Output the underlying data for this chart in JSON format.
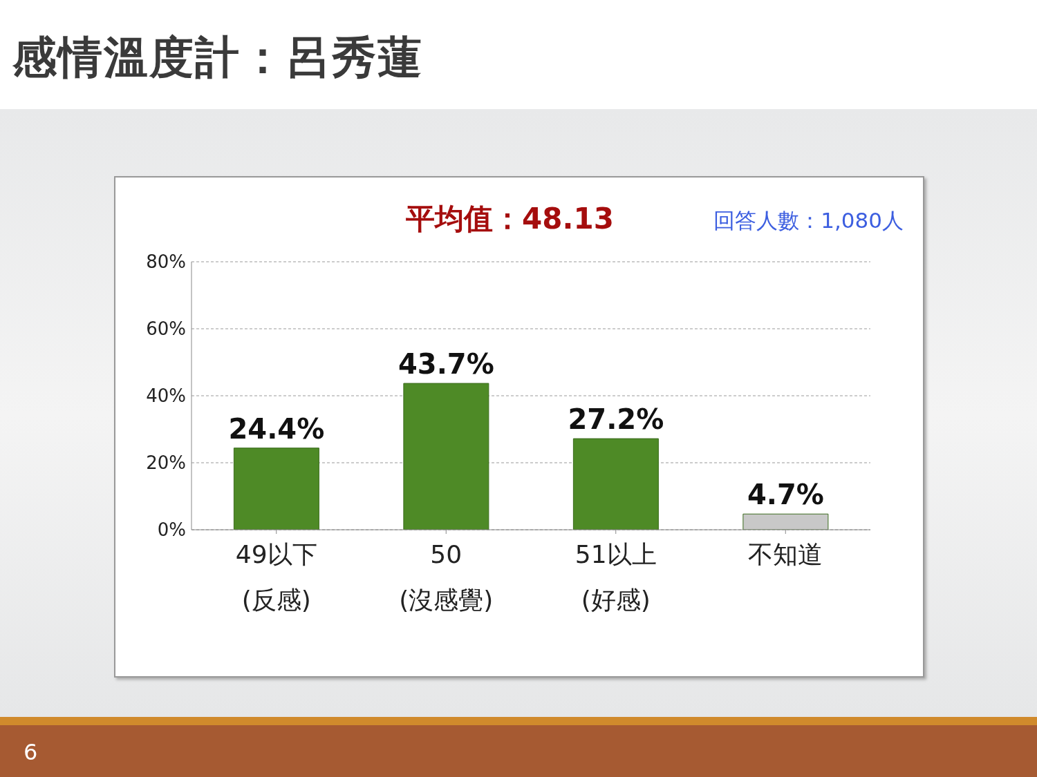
{
  "chart_data": {
    "type": "bar",
    "title": "感情溫度計：呂秀蓮",
    "categories": [
      "49以下\n(反感)",
      "50\n(沒感覺)",
      "51以上\n(好感)",
      "不知道"
    ],
    "values": [
      24.4,
      43.7,
      27.2,
      4.7
    ],
    "value_labels": [
      "24.4%",
      "43.7%",
      "27.2%",
      "4.7%"
    ],
    "colors": [
      "#4e8a26",
      "#4e8a26",
      "#4e8a26",
      "#c8c8c8"
    ],
    "ylim": [
      0,
      80
    ],
    "yticks": [
      {
        "value": 0,
        "label": "0%"
      },
      {
        "value": 20,
        "label": "20%"
      },
      {
        "value": 40,
        "label": "40%"
      },
      {
        "value": 60,
        "label": "60%"
      },
      {
        "value": 80,
        "label": "80%"
      }
    ],
    "grid": "y",
    "annotations": [
      "平均值：48.13",
      "回答人數：1,080人",
      "6"
    ]
  }
}
